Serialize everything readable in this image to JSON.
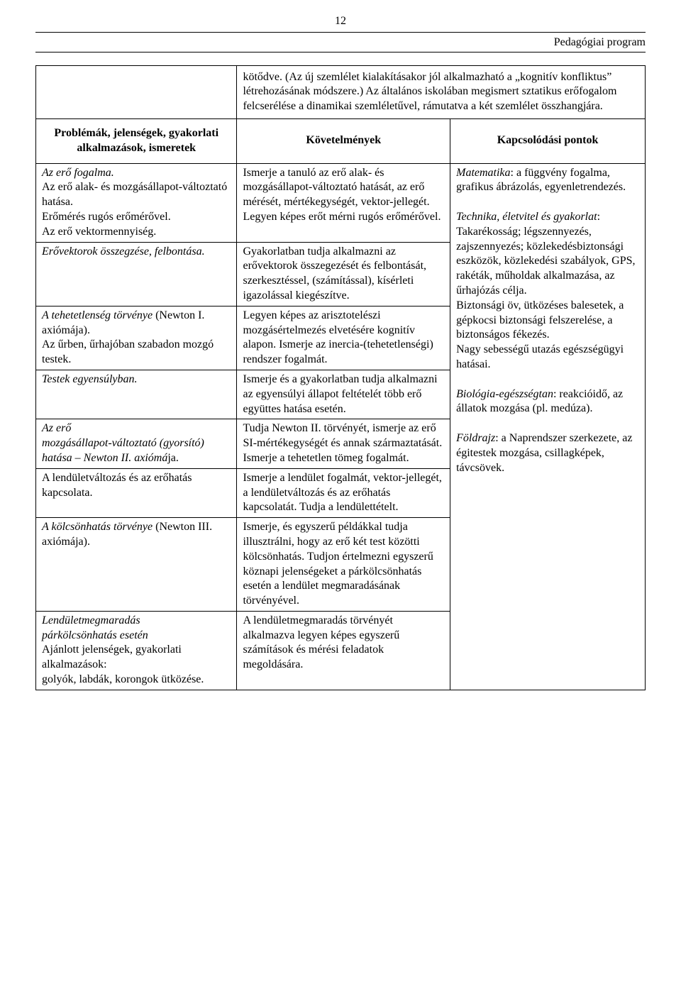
{
  "page_number": "12",
  "doc_title": "Pedagógiai program",
  "intro": "kötődve. (Az új szemlélet kialakításakor jól alkalmazható a „kognitív konfliktus” létrehozásának módszere.)\nAz általános iskolában megismert sztatikus erőfogalom felcserélése a dinamikai szemléletűvel, rámutatva a két szemlélet összhangjára.",
  "headers": {
    "left": "Problémák, jelenségek, gyakorlati alkalmazások, ismeretek",
    "mid": "Követelmények",
    "right": "Kapcsolódási pontok"
  },
  "rows": [
    {
      "left_html": "<span class=\"italic\">Az erő fogalma.</span><br>Az erő alak- és mozgásállapot-változtató hatása.<br>Erőmérés rugós erőmérővel.<br>Az erő vektormennyiség.",
      "mid": "Ismerje a tanuló az erő alak- és mozgásállapot-változtató hatását, az erő mérését, mértékegységét, vektor-jellegét.\nLegyen képes erőt mérni rugós erőmérővel."
    },
    {
      "left_html": "<span class=\"italic\">Erővektorok összegzése, felbontása.</span>",
      "mid": "Gyakorlatban tudja alkalmazni az erővektorok összegezését és felbontását, szerkesztéssel, (számítással), kísérleti igazolással kiegészítve."
    },
    {
      "left_html": "<span class=\"italic\">A tehetetlenség törvénye</span> (Newton I. axiómája).<br>Az űrben, űrhajóban szabadon mozgó testek.",
      "mid": "Legyen képes az arisztotelészi mozgásértelmezés elvetésére kognitív alapon.\nIsmerje az inercia-(tehetetlenségi) rendszer fogalmát."
    },
    {
      "left_html": "<span class=\"italic\">Testek egyensúlyban.</span>",
      "mid": "Ismerje és a gyakorlatban tudja alkalmazni az egyensúlyi állapot feltételét több erő együttes hatása esetén."
    },
    {
      "left_html": "<span class=\"italic\">Az erő<br>mozgásállapot-változtató (gyorsító) hatása – Newton II. axiómá</span>ja.",
      "mid": "Tudja Newton II. törvényét, ismerje az erő SI-mértékegységét és annak származtatását.\nIsmerje a tehetetlen tömeg fogalmát."
    },
    {
      "left_html": "A lendületváltozás és az erőhatás kapcsolata.",
      "mid": "Ismerje a lendület fogalmát, vektor-jellegét, a lendületváltozás és az erőhatás kapcsolatát. Tudja a lendülettételt."
    },
    {
      "left_html": "<span class=\"italic\">A kölcsönhatás törvénye</span> (Newton III. axiómája).",
      "mid": "Ismerje, és egyszerű példákkal tudja illusztrálni, hogy az erő két test közötti kölcsönhatás.\nTudjon értelmezni egyszerű köznapi jelenségeket a párkölcsönhatás esetén a lendület megmaradásának törvényével."
    },
    {
      "left_html": "<span class=\"italic\">Lendületmegmaradás<br>párkölcsönhatás esetén</span><br>Ajánlott jelenségek, gyakorlati alkalmazások:<br>golyók, labdák, korongok ütközése.",
      "mid": "A lendületmegmaradás törvényét alkalmazva legyen képes egyszerű számítások és mérési feladatok megoldására."
    }
  ],
  "right_html": "<span class=\"italic\">Matematika</span>: a függvény fogalma, grafikus ábrázolás, egyenletrendezés.<br><br><span class=\"italic\">Technika, életvitel és gyakorlat</span>:<br>Takarékosság; légszennyezés, zajszennyezés; közlekedésbiztonsági eszközök, közlekedési szabályok, GPS, rakéták, műholdak alkalmazása, az űrhajózás célja.<br>Biztonsági öv, ütközéses balesetek, a gépkocsi biztonsági felszerelése, a biztonságos fékezés.<br>Nagy sebességű utazás egészségügyi hatásai.<br><br><span class=\"italic\">Biológia-egészségtan</span>: reakcióidő, az állatok mozgása (pl. medúza).<br><br><span class=\"italic\">Földrajz</span>: a Naprendszer szerkezete, az égitestek mozgása, csillagképek, távcsövek."
}
